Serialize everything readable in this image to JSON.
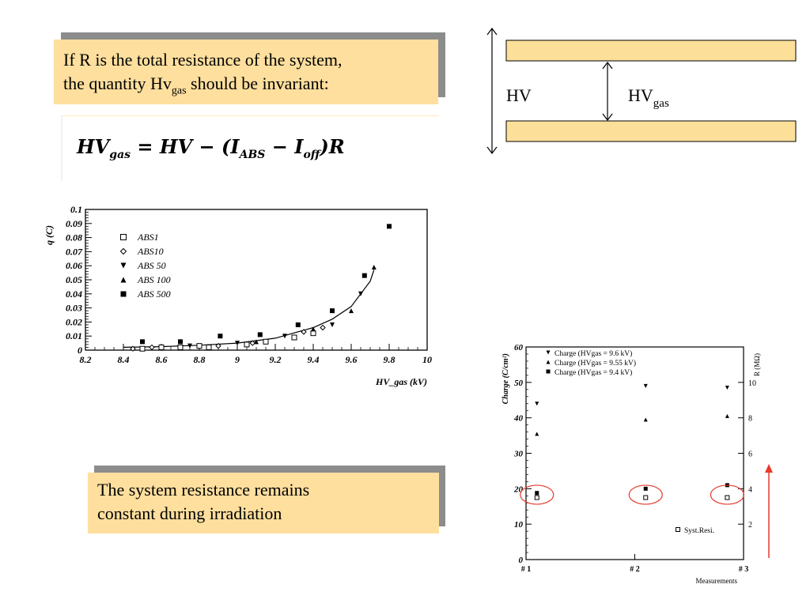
{
  "callout_top": {
    "line1": "If R is the total resistance of the system,",
    "line2_pre": "the quantity Hv",
    "line2_sub": "gas",
    "line2_post": " should be invariant:"
  },
  "formula": {
    "lhs": "HV",
    "lhs_sub": "gas",
    "eq": " = HV − (I",
    "i_abs_sub": "ABS",
    "minus": " − I",
    "i_off_sub": "off",
    "tail": ")R"
  },
  "diagram": {
    "hv_label": "HV",
    "hvgas_label": "HV",
    "hvgas_sub": "gas",
    "plate_color": "#fce09a"
  },
  "callout_bottom": {
    "line1": "The system resistance remains",
    "line2": "constant during irradiation"
  },
  "colors": {
    "callout_fill": "#ffdf9e",
    "callout_shadow": "#8c8c8c",
    "circle": "#e63b2e",
    "arrow": "#e63b2e"
  },
  "chart_data": [
    {
      "type": "scatter",
      "xlabel": "HV_gas (kV)",
      "ylabel": "q (C)",
      "xlim": [
        8.2,
        10
      ],
      "ylim": [
        0,
        0.1
      ],
      "xticks": [
        "8.2",
        "8.4",
        "8.6",
        "8.8",
        "9",
        "9.2",
        "9.4",
        "9.6",
        "9.8",
        "10"
      ],
      "yticks": [
        "0",
        "0.01",
        "0.02",
        "0.03",
        "0.04",
        "0.05",
        "0.06",
        "0.07",
        "0.08",
        "0.09",
        "0.1"
      ],
      "legend_position": "top-left",
      "series": [
        {
          "name": "ABS1",
          "marker": "open-square",
          "points": [
            [
              8.5,
              0.001
            ],
            [
              8.6,
              0.002
            ],
            [
              8.7,
              0.002
            ],
            [
              8.8,
              0.003
            ],
            [
              8.85,
              0.002
            ],
            [
              9.05,
              0.004
            ],
            [
              9.15,
              0.006
            ],
            [
              9.3,
              0.009
            ],
            [
              9.4,
              0.012
            ]
          ]
        },
        {
          "name": "ABS10",
          "marker": "open-diamond",
          "points": [
            [
              8.45,
              0.001
            ],
            [
              8.55,
              0.002
            ],
            [
              8.9,
              0.003
            ],
            [
              9.08,
              0.005
            ],
            [
              9.35,
              0.013
            ],
            [
              9.45,
              0.016
            ]
          ]
        },
        {
          "name": "ABS 50",
          "marker": "down-triangle",
          "points": [
            [
              8.75,
              0.003
            ],
            [
              9.0,
              0.005
            ],
            [
              9.25,
              0.01
            ],
            [
              9.5,
              0.018
            ],
            [
              9.65,
              0.04
            ]
          ]
        },
        {
          "name": "ABS 100",
          "marker": "up-triangle",
          "points": [
            [
              9.1,
              0.006
            ],
            [
              9.4,
              0.015
            ],
            [
              9.6,
              0.028
            ],
            [
              9.72,
              0.059
            ]
          ]
        },
        {
          "name": "ABS 500",
          "marker": "filled-square",
          "points": [
            [
              8.5,
              0.006
            ],
            [
              8.7,
              0.006
            ],
            [
              8.91,
              0.01
            ],
            [
              9.12,
              0.011
            ],
            [
              9.32,
              0.018
            ],
            [
              9.5,
              0.028
            ],
            [
              9.67,
              0.053
            ],
            [
              9.8,
              0.088
            ]
          ]
        }
      ],
      "fit_curve": [
        [
          8.4,
          0.002
        ],
        [
          8.6,
          0.0025
        ],
        [
          8.8,
          0.0035
        ],
        [
          9.0,
          0.005
        ],
        [
          9.2,
          0.0085
        ],
        [
          9.4,
          0.016
        ],
        [
          9.5,
          0.022
        ],
        [
          9.6,
          0.031
        ],
        [
          9.7,
          0.049
        ],
        [
          9.72,
          0.057
        ]
      ]
    },
    {
      "type": "scatter",
      "xlabel": "Measurements",
      "ylabel": "Charge (C/cm²)",
      "y2label": "R (MΩ)",
      "categories": [
        "# 1",
        "# 2",
        "# 3"
      ],
      "xlim": [
        1,
        3
      ],
      "ylim": [
        0,
        60
      ],
      "y2lim": [
        0,
        12
      ],
      "yticks": [
        "0",
        "10",
        "20",
        "30",
        "40",
        "50",
        "60"
      ],
      "y2ticks": [
        "2",
        "4",
        "6",
        "8",
        "10"
      ],
      "legend_position": "top-left",
      "series": [
        {
          "name": "Charge (HVgas = 9.6 kV)",
          "marker": "down-triangle",
          "axis": "left",
          "points": [
            [
              1.1,
              44
            ],
            [
              2.1,
              49
            ],
            [
              2.85,
              48.5
            ]
          ]
        },
        {
          "name": "Charge (HVgas = 9.55 kV)",
          "marker": "up-triangle",
          "axis": "left",
          "points": [
            [
              1.1,
              35.5
            ],
            [
              2.1,
              39.5
            ],
            [
              2.85,
              40.5
            ]
          ]
        },
        {
          "name": "Charge (HVgas = 9.4 kV)",
          "marker": "filled-square",
          "axis": "left",
          "points": [
            [
              1.1,
              18.8
            ],
            [
              2.1,
              20
            ],
            [
              2.85,
              21
            ]
          ]
        },
        {
          "name": "Syst.Resi.",
          "marker": "open-square",
          "axis": "right",
          "points": [
            [
              1.1,
              3.5
            ],
            [
              2.1,
              3.5
            ],
            [
              2.85,
              3.5
            ]
          ]
        }
      ]
    }
  ]
}
